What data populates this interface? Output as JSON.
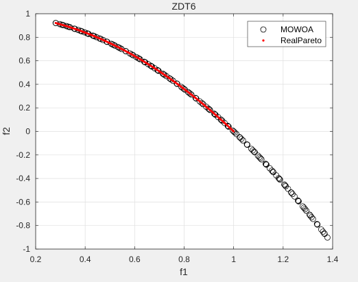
{
  "chart_data": {
    "type": "scatter",
    "title": "ZDT6",
    "xlabel": "f1",
    "ylabel": "f2",
    "xlim": [
      0.2,
      1.4
    ],
    "ylim": [
      -1,
      1
    ],
    "xticks": [
      "0.2",
      "0.4",
      "0.6",
      "0.8",
      "1",
      "1.2",
      "1.4"
    ],
    "yticks": [
      "-1",
      "-0.8",
      "-0.6",
      "-0.4",
      "-0.2",
      "0",
      "0.2",
      "0.4",
      "0.6",
      "0.8",
      "1"
    ],
    "grid": true,
    "legend": {
      "placement": "top-right",
      "entries": [
        {
          "label": "MOWOA",
          "marker": "circle",
          "color": "#000000"
        },
        {
          "label": "RealPareto",
          "marker": "dot",
          "color": "#ff0000"
        }
      ]
    },
    "series": [
      {
        "name": "MOWOA",
        "marker": "circle",
        "color": "#000000",
        "x_range": [
          0.2807753191,
          1.3791391399
        ],
        "count": 160,
        "relation": "f2 = 1 - f1^2"
      },
      {
        "name": "RealPareto",
        "marker": "dot",
        "color": "#ff0000",
        "x_range": [
          0.2807753191,
          1.0
        ],
        "count": 200,
        "relation": "f2 = 1 - f1^2"
      }
    ]
  }
}
